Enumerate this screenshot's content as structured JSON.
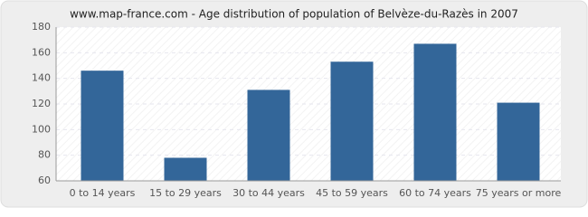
{
  "chart_data": {
    "type": "bar",
    "title": "www.map-france.com - Age distribution of population of Belvèze-du-Razès in 2007",
    "categories": [
      "0 to 14 years",
      "15 to 29 years",
      "30 to 44 years",
      "45 to 59 years",
      "60 to 74 years",
      "75 years or more"
    ],
    "values": [
      146,
      78,
      131,
      153,
      167,
      121
    ],
    "color": "#336699",
    "ylim": [
      60,
      180
    ],
    "yticks": [
      60,
      80,
      100,
      120,
      140,
      160,
      180
    ],
    "grid": true
  }
}
